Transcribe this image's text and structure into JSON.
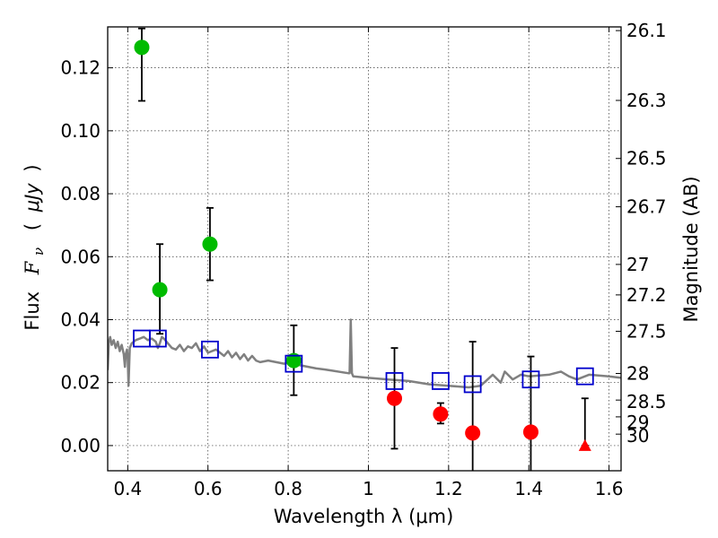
{
  "chart_data": {
    "type": "scatter",
    "title": "",
    "xlabel": "Wavelength  λ (μm)",
    "ylabel": "Flux  F_ν  ( μJy )",
    "ylabel_parts": {
      "prefix": "Flux",
      "symbol": "F",
      "subscript": "ν",
      "unit_open": "(",
      "unit": "μJy",
      "unit_close": ")"
    },
    "y2label": "Magnitude (AB)",
    "xlim": [
      0.35,
      1.63
    ],
    "ylim": [
      -0.008,
      0.133
    ],
    "grid": true,
    "x_ticks": [
      0.4,
      0.6,
      0.8,
      1.0,
      1.2,
      1.4,
      1.6
    ],
    "x_tick_labels": [
      "0.4",
      "0.6",
      "0.8",
      "1",
      "1.2",
      "1.4",
      "1.6"
    ],
    "y_ticks": [
      0.0,
      0.02,
      0.04,
      0.06,
      0.08,
      0.1,
      0.12
    ],
    "y_tick_labels": [
      "0.00",
      "0.02",
      "0.04",
      "0.06",
      "0.08",
      "0.10",
      "0.12"
    ],
    "right_axis": {
      "type": "AB magnitude of flux in μJy",
      "ticks": [
        26.1,
        26.3,
        26.5,
        26.7,
        27,
        27.2,
        27.5,
        28,
        28.5,
        29,
        30
      ],
      "tick_labels": [
        "26.1",
        "26.3",
        "26.5",
        "26.7",
        "27",
        "27.2",
        "27.5",
        "28",
        "28.5",
        "29",
        "30"
      ]
    },
    "series": [
      {
        "name": "Green detections",
        "marker": "circle",
        "color": "#00bb00",
        "points": [
          {
            "x": 0.435,
            "y": 0.1265,
            "err_low": 0.017,
            "err_high": 0.006
          },
          {
            "x": 0.48,
            "y": 0.0495,
            "err_low": 0.014,
            "err_high": 0.0145
          },
          {
            "x": 0.605,
            "y": 0.064,
            "err_low": 0.0115,
            "err_high": 0.0115
          },
          {
            "x": 0.814,
            "y": 0.027,
            "err_low": 0.011,
            "err_high": 0.0112
          }
        ]
      },
      {
        "name": "Red detections",
        "marker": "circle",
        "color": "#ff0000",
        "points": [
          {
            "x": 1.065,
            "y": 0.015,
            "err_low": 0.016,
            "err_high": 0.016
          },
          {
            "x": 1.18,
            "y": 0.01,
            "err_low": 0.003,
            "err_high": 0.0035
          },
          {
            "x": 1.26,
            "y": 0.004,
            "err_low": 0.013,
            "err_high": 0.029
          },
          {
            "x": 1.405,
            "y": 0.0043,
            "err_low": 0.013,
            "err_high": 0.024
          }
        ]
      },
      {
        "name": "Red upper limit",
        "marker": "triangle",
        "color": "#ff0000",
        "points": [
          {
            "x": 1.54,
            "y": 0.0,
            "err_low": 0.0,
            "err_high": 0.015
          }
        ]
      },
      {
        "name": "Model photometry",
        "marker": "square-open",
        "color": "#0000cc",
        "points": [
          {
            "x": 0.435,
            "y": 0.034
          },
          {
            "x": 0.475,
            "y": 0.034
          },
          {
            "x": 0.605,
            "y": 0.0305
          },
          {
            "x": 0.814,
            "y": 0.026
          },
          {
            "x": 1.065,
            "y": 0.0205
          },
          {
            "x": 1.18,
            "y": 0.0205
          },
          {
            "x": 1.26,
            "y": 0.0195
          },
          {
            "x": 1.405,
            "y": 0.021
          },
          {
            "x": 1.54,
            "y": 0.022
          }
        ]
      },
      {
        "name": "Model SED",
        "marker": "line",
        "color": "#808080",
        "points": [
          {
            "x": 0.35,
            "y": 0.024
          },
          {
            "x": 0.353,
            "y": 0.033
          },
          {
            "x": 0.356,
            "y": 0.0345
          },
          {
            "x": 0.36,
            "y": 0.032
          },
          {
            "x": 0.365,
            "y": 0.0335
          },
          {
            "x": 0.37,
            "y": 0.031
          },
          {
            "x": 0.375,
            "y": 0.033
          },
          {
            "x": 0.38,
            "y": 0.03
          },
          {
            "x": 0.385,
            "y": 0.032
          },
          {
            "x": 0.39,
            "y": 0.029
          },
          {
            "x": 0.393,
            "y": 0.025
          },
          {
            "x": 0.395,
            "y": 0.029
          },
          {
            "x": 0.398,
            "y": 0.0305
          },
          {
            "x": 0.4,
            "y": 0.028
          },
          {
            "x": 0.402,
            "y": 0.019
          },
          {
            "x": 0.405,
            "y": 0.031
          },
          {
            "x": 0.41,
            "y": 0.0325
          },
          {
            "x": 0.42,
            "y": 0.0335
          },
          {
            "x": 0.43,
            "y": 0.034
          },
          {
            "x": 0.44,
            "y": 0.0345
          },
          {
            "x": 0.45,
            "y": 0.0335
          },
          {
            "x": 0.46,
            "y": 0.034
          },
          {
            "x": 0.47,
            "y": 0.033
          },
          {
            "x": 0.475,
            "y": 0.031
          },
          {
            "x": 0.48,
            "y": 0.0325
          },
          {
            "x": 0.485,
            "y": 0.0345
          },
          {
            "x": 0.49,
            "y": 0.034
          },
          {
            "x": 0.5,
            "y": 0.0325
          },
          {
            "x": 0.51,
            "y": 0.031
          },
          {
            "x": 0.52,
            "y": 0.0305
          },
          {
            "x": 0.53,
            "y": 0.032
          },
          {
            "x": 0.54,
            "y": 0.03
          },
          {
            "x": 0.55,
            "y": 0.0315
          },
          {
            "x": 0.56,
            "y": 0.031
          },
          {
            "x": 0.57,
            "y": 0.0325
          },
          {
            "x": 0.58,
            "y": 0.03
          },
          {
            "x": 0.59,
            "y": 0.0315
          },
          {
            "x": 0.6,
            "y": 0.0295
          },
          {
            "x": 0.62,
            "y": 0.0305
          },
          {
            "x": 0.64,
            "y": 0.0285
          },
          {
            "x": 0.65,
            "y": 0.03
          },
          {
            "x": 0.66,
            "y": 0.028
          },
          {
            "x": 0.67,
            "y": 0.0295
          },
          {
            "x": 0.68,
            "y": 0.0275
          },
          {
            "x": 0.69,
            "y": 0.029
          },
          {
            "x": 0.7,
            "y": 0.027
          },
          {
            "x": 0.71,
            "y": 0.0285
          },
          {
            "x": 0.72,
            "y": 0.027
          },
          {
            "x": 0.73,
            "y": 0.0265
          },
          {
            "x": 0.75,
            "y": 0.027
          },
          {
            "x": 0.77,
            "y": 0.0265
          },
          {
            "x": 0.79,
            "y": 0.026
          },
          {
            "x": 0.81,
            "y": 0.0265
          },
          {
            "x": 0.83,
            "y": 0.0255
          },
          {
            "x": 0.85,
            "y": 0.025
          },
          {
            "x": 0.87,
            "y": 0.0245
          },
          {
            "x": 0.89,
            "y": 0.0242
          },
          {
            "x": 0.91,
            "y": 0.0238
          },
          {
            "x": 0.93,
            "y": 0.0234
          },
          {
            "x": 0.95,
            "y": 0.023
          },
          {
            "x": 0.953,
            "y": 0.023
          },
          {
            "x": 0.956,
            "y": 0.04
          },
          {
            "x": 0.959,
            "y": 0.023
          },
          {
            "x": 0.962,
            "y": 0.022
          },
          {
            "x": 1.0,
            "y": 0.0215
          },
          {
            "x": 1.05,
            "y": 0.021
          },
          {
            "x": 1.1,
            "y": 0.0205
          },
          {
            "x": 1.15,
            "y": 0.0195
          },
          {
            "x": 1.2,
            "y": 0.019
          },
          {
            "x": 1.25,
            "y": 0.0185
          },
          {
            "x": 1.28,
            "y": 0.019
          },
          {
            "x": 1.31,
            "y": 0.0225
          },
          {
            "x": 1.33,
            "y": 0.02
          },
          {
            "x": 1.34,
            "y": 0.0235
          },
          {
            "x": 1.36,
            "y": 0.021
          },
          {
            "x": 1.38,
            "y": 0.0225
          },
          {
            "x": 1.4,
            "y": 0.022
          },
          {
            "x": 1.45,
            "y": 0.0225
          },
          {
            "x": 1.48,
            "y": 0.0235
          },
          {
            "x": 1.5,
            "y": 0.022
          },
          {
            "x": 1.52,
            "y": 0.021
          },
          {
            "x": 1.55,
            "y": 0.0225
          },
          {
            "x": 1.6,
            "y": 0.022
          },
          {
            "x": 1.63,
            "y": 0.0215
          }
        ]
      }
    ]
  }
}
